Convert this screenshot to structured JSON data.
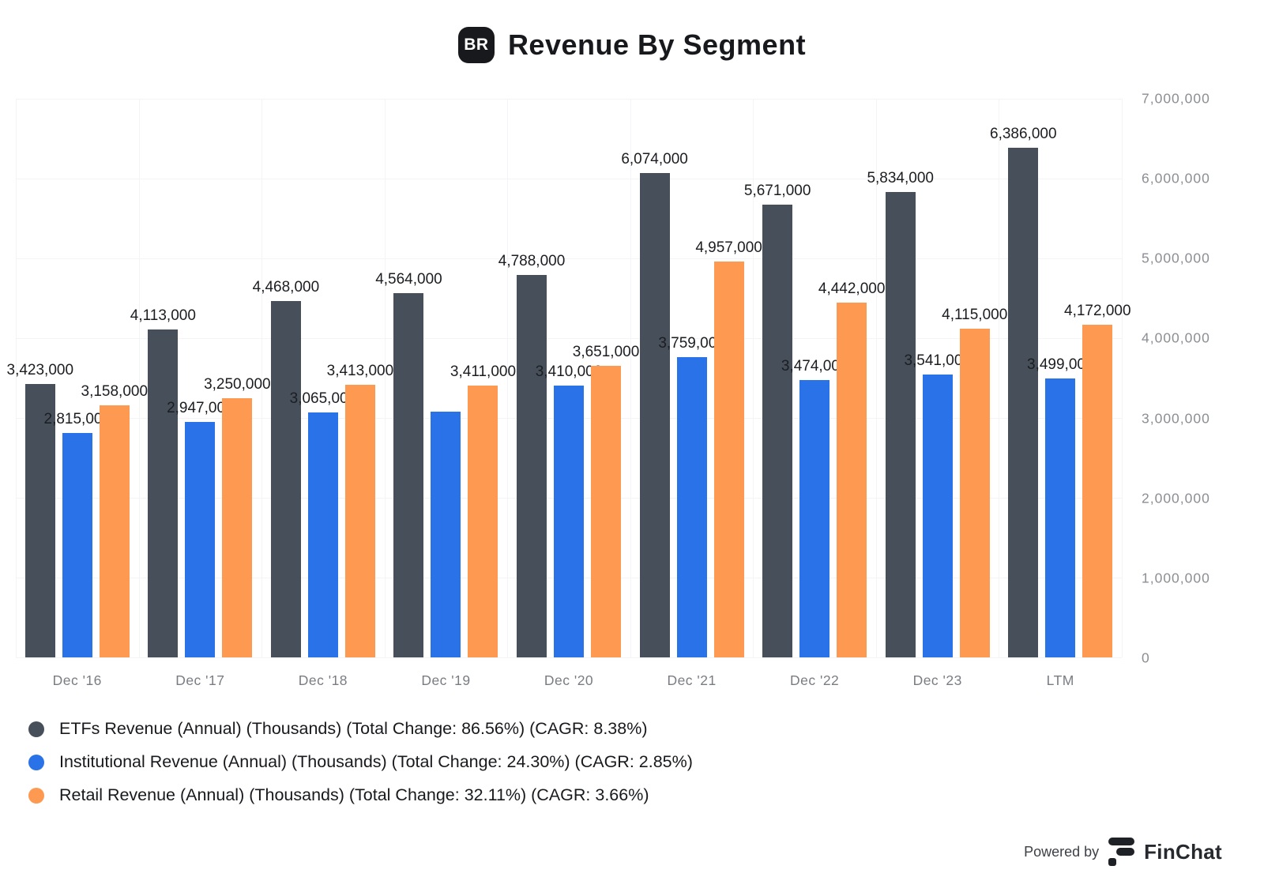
{
  "header": {
    "badge_text": "BR",
    "title": "Revenue By Segment"
  },
  "chart_data": {
    "type": "bar",
    "title": "Revenue By Segment",
    "categories": [
      "Dec '16",
      "Dec '17",
      "Dec '18",
      "Dec '19",
      "Dec '20",
      "Dec '21",
      "Dec '22",
      "Dec '23",
      "LTM"
    ],
    "series": [
      {
        "key": "etfs",
        "name": "ETFs Revenue (Annual) (Thousands) (Total Change: 86.56%) (CAGR: 8.38%)",
        "color": "#47505a",
        "values": [
          3423000,
          4113000,
          4468000,
          4564000,
          4788000,
          6074000,
          5671000,
          5834000,
          6386000
        ],
        "labels": [
          "3,423,000",
          "4,113,000",
          "4,468,000",
          "4,564,000",
          "4,788,000",
          "6,074,000",
          "5,671,000",
          "5,834,000",
          "6,386,000"
        ]
      },
      {
        "key": "institutional",
        "name": "Institutional Revenue (Annual) (Thousands) (Total Change: 24.30%) (CAGR: 2.85%)",
        "color": "#2a72e8",
        "values": [
          2815000,
          2947000,
          3065000,
          3080000,
          3410000,
          3759000,
          3474000,
          3541000,
          3499000
        ],
        "labels": [
          "2,815,000",
          "2,947,000",
          "3,065,000",
          null,
          "3,410,000",
          "3,759,000",
          "3,474,000",
          "3,541,000",
          "3,499,000"
        ]
      },
      {
        "key": "retail",
        "name": "Retail Revenue (Annual) (Thousands) (Total Change: 32.11%) (CAGR: 3.66%)",
        "color": "#fd9951",
        "values": [
          3158000,
          3250000,
          3413000,
          3411000,
          3651000,
          4957000,
          4442000,
          4115000,
          4172000
        ],
        "labels": [
          "3,158,000",
          "3,250,000",
          "3,413,000",
          "3,411,000",
          "3,651,000",
          "4,957,000",
          "4,442,000",
          "4,115,000",
          "4,172,000"
        ]
      }
    ],
    "ylim": [
      0,
      7000000
    ],
    "y_ticks": [
      "7,000,000",
      "6,000,000",
      "5,000,000",
      "4,000,000",
      "3,000,000",
      "2,000,000",
      "1,000,000",
      "0"
    ],
    "grid": true,
    "legend_position": "bottom-left",
    "xlabel": "",
    "ylabel": ""
  },
  "footer": {
    "powered_by": "Powered by",
    "brand": "FinChat"
  }
}
